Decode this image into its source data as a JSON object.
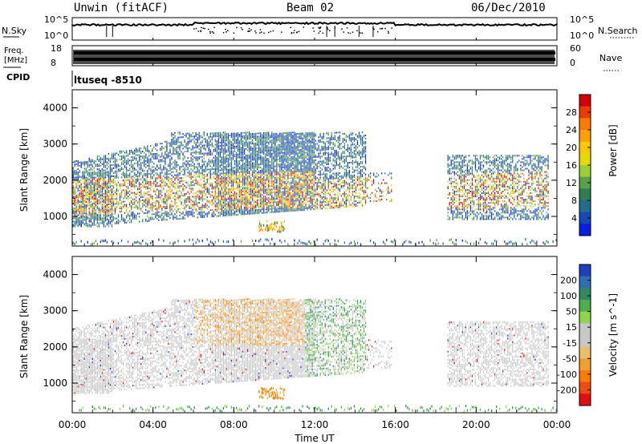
{
  "header": {
    "station": "Unwin (fitACF)",
    "beam": "Beam 02",
    "date": "06/Dec/2010"
  },
  "noise_panel": {
    "left_label": "N.Sky",
    "right_label": "N.Search",
    "ticks": [
      "10^5",
      "10^0"
    ]
  },
  "freq_panel": {
    "left_label_line1": "Freq.",
    "left_label_line2": "[MHz]",
    "right_label": "Nave",
    "left_ticks": [
      "18",
      "8"
    ],
    "right_ticks": [
      "60",
      "0"
    ]
  },
  "cpid_panel": {
    "label": "CPID",
    "value": "ltuseq -8510"
  },
  "x_axis": {
    "label": "Time UT",
    "ticks": [
      "00:00",
      "04:00",
      "08:00",
      "12:00",
      "16:00",
      "20:00",
      "00:00"
    ]
  },
  "chart_data": [
    {
      "type": "heatmap",
      "name": "Power",
      "ylabel": "Slant Range [km]",
      "ylim": [
        180,
        4500
      ],
      "yticks": [
        "4000",
        "3000",
        "2000",
        "1000"
      ],
      "xlim_hours": [
        0,
        24
      ],
      "colorbar": {
        "label": "Power [dB]",
        "ticks": [
          "28",
          "24",
          "20",
          "16",
          "12",
          "8",
          "4"
        ],
        "colors": [
          "#d40000",
          "#ee3b00",
          "#ff7a00",
          "#ff9f00",
          "#ffc800",
          "#e6d800",
          "#9ccf33",
          "#5aa24a",
          "#2e7d55",
          "#1f6e8c",
          "#1648b8",
          "#0a1fe6"
        ]
      }
    },
    {
      "type": "heatmap",
      "name": "Velocity",
      "ylabel": "Slant Range [km]",
      "ylim": [
        180,
        4500
      ],
      "yticks": [
        "4000",
        "3000",
        "2000",
        "1000"
      ],
      "xlim_hours": [
        0,
        24
      ],
      "colorbar": {
        "label": "Velocity [m s^-1]",
        "ticks": [
          "200",
          "100",
          "50",
          "15",
          "-15",
          "-50",
          "-100",
          "-200"
        ],
        "colors": [
          "#1f3fbf",
          "#2d6fb0",
          "#2f8a63",
          "#4caf4c",
          "#8fd34e",
          "#c8c8c8",
          "#c8c8c8",
          "#e8c06a",
          "#f0a030",
          "#ff7a00",
          "#f04a10",
          "#e01010"
        ]
      }
    }
  ]
}
